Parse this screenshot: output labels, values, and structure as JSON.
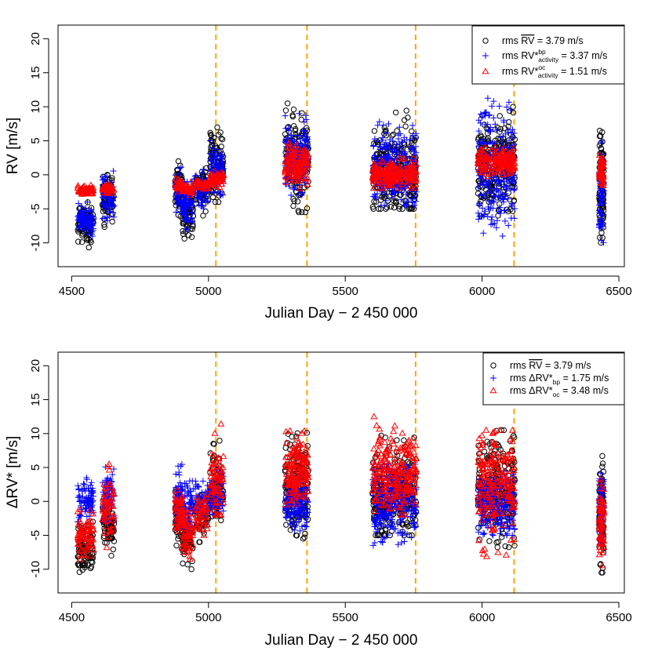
{
  "chart_data": [
    {
      "type": "scatter",
      "panel": "top",
      "xlabel": "Julian Day − 2 450 000",
      "ylabel": "RV [m/s]",
      "xlim": [
        4450,
        6520
      ],
      "ylim": [
        -13.5,
        22
      ],
      "xticks": [
        4500,
        5000,
        5500,
        6000,
        6500
      ],
      "yticks": [
        -10,
        -5,
        0,
        5,
        10,
        15,
        20
      ],
      "grid": false,
      "legend_position": "top-right",
      "vertical_lines": {
        "x": [
          5027,
          5360,
          5757,
          6117
        ],
        "color": "#FFA500",
        "style": "dashed"
      },
      "legend": [
        {
          "marker": "circle",
          "color": "#000000",
          "prefix": "rms ",
          "symbol": "RV",
          "overline": true,
          "sup": "",
          "sub": "",
          "text": " = 3.79 m/s"
        },
        {
          "marker": "plus",
          "color": "#0000FF",
          "prefix": "rms ",
          "symbol": "RV*",
          "overline": false,
          "sup": "bp",
          "sub": "activity",
          "text": " = 3.37 m/s"
        },
        {
          "marker": "triangle",
          "color": "#FF0000",
          "prefix": "rms ",
          "symbol": "RV*",
          "overline": false,
          "sup": "oc",
          "sub": "activity",
          "text": " = 1.51 m/s"
        }
      ],
      "series": [
        {
          "name": "rms RV (mean)",
          "marker": "circle",
          "color": "#000000",
          "clusters": [
            {
              "x": [
                4522,
                4580
              ],
              "y": [
                -11.0,
                -4.0
              ],
              "mean": -7.0,
              "n": 90
            },
            {
              "x": [
                4612,
                4655
              ],
              "y": [
                -8.0,
                0.0
              ],
              "mean": -3.5,
              "n": 70
            },
            {
              "x": [
                4878,
                4905
              ],
              "y": [
                -7.0,
                2.0
              ],
              "mean": -2.0,
              "n": 60
            },
            {
              "x": [
                4905,
                4945
              ],
              "y": [
                -10.0,
                -2.0
              ],
              "mean": -5.5,
              "n": 70
            },
            {
              "x": [
                4950,
                5000
              ],
              "y": [
                -6.0,
                1.0
              ],
              "mean": -2.0,
              "n": 60
            },
            {
              "x": [
                5005,
                5055
              ],
              "y": [
                -4.0,
                8.0
              ],
              "mean": 2.0,
              "n": 80
            },
            {
              "x": [
                5280,
                5365
              ],
              "y": [
                -5.5,
                10.5
              ],
              "mean": 2.0,
              "n": 170
            },
            {
              "x": [
                5600,
                5760
              ],
              "y": [
                -5.0,
                10.5
              ],
              "mean": 0.5,
              "n": 280
            },
            {
              "x": [
                5985,
                6120
              ],
              "y": [
                -6.0,
                10.5
              ],
              "mean": 1.0,
              "n": 240
            },
            {
              "x": [
                6428,
                6445
              ],
              "y": [
                -10.5,
                7.5
              ],
              "mean": -2.0,
              "n": 90
            }
          ]
        },
        {
          "name": "rms RV*bp activity",
          "marker": "plus",
          "color": "#0000FF",
          "clusters": [
            {
              "x": [
                4522,
                4580
              ],
              "y": [
                -9.0,
                -4.0
              ],
              "mean": -6.5,
              "n": 90
            },
            {
              "x": [
                4612,
                4655
              ],
              "y": [
                -7.0,
                1.5
              ],
              "mean": -3.5,
              "n": 70
            },
            {
              "x": [
                4878,
                4905
              ],
              "y": [
                -6.0,
                1.5
              ],
              "mean": -2.5,
              "n": 60
            },
            {
              "x": [
                4905,
                4945
              ],
              "y": [
                -8.0,
                -1.0
              ],
              "mean": -4.5,
              "n": 70
            },
            {
              "x": [
                4950,
                5000
              ],
              "y": [
                -5.0,
                1.0
              ],
              "mean": -2.0,
              "n": 60
            },
            {
              "x": [
                5005,
                5055
              ],
              "y": [
                -3.0,
                5.0
              ],
              "mean": 1.0,
              "n": 80
            },
            {
              "x": [
                5280,
                5365
              ],
              "y": [
                -3.0,
                9.0
              ],
              "mean": 2.5,
              "n": 170
            },
            {
              "x": [
                5600,
                5760
              ],
              "y": [
                -4.5,
                8.0
              ],
              "mean": 0.5,
              "n": 280
            },
            {
              "x": [
                5985,
                6120
              ],
              "y": [
                -9.0,
                11.5
              ],
              "mean": 0.5,
              "n": 240
            },
            {
              "x": [
                6428,
                6445
              ],
              "y": [
                -10.0,
                5.0
              ],
              "mean": -2.0,
              "n": 90
            }
          ]
        },
        {
          "name": "rms RV*oc activity",
          "marker": "triangle",
          "color": "#FF0000",
          "clusters": [
            {
              "x": [
                4522,
                4580
              ],
              "y": [
                -3.0,
                -1.5
              ],
              "mean": -2.3,
              "n": 60
            },
            {
              "x": [
                4612,
                4655
              ],
              "y": [
                -3.0,
                -1.0
              ],
              "mean": -2.0,
              "n": 50
            },
            {
              "x": [
                4878,
                4905
              ],
              "y": [
                -2.5,
                -0.5
              ],
              "mean": -1.5,
              "n": 40
            },
            {
              "x": [
                4905,
                4945
              ],
              "y": [
                -3.0,
                -1.0
              ],
              "mean": -2.0,
              "n": 40
            },
            {
              "x": [
                4950,
                5000
              ],
              "y": [
                -2.5,
                -0.5
              ],
              "mean": -1.5,
              "n": 40
            },
            {
              "x": [
                5005,
                5055
              ],
              "y": [
                -2.0,
                0.5
              ],
              "mean": -0.5,
              "n": 50
            },
            {
              "x": [
                5280,
                5365
              ],
              "y": [
                -2.0,
                5.0
              ],
              "mean": 1.5,
              "n": 120
            },
            {
              "x": [
                5600,
                5760
              ],
              "y": [
                -2.0,
                2.5
              ],
              "mean": 0.0,
              "n": 200
            },
            {
              "x": [
                5985,
                6120
              ],
              "y": [
                -0.5,
                4.5
              ],
              "mean": 2.0,
              "n": 160
            },
            {
              "x": [
                6428,
                6445
              ],
              "y": [
                -2.0,
                3.0
              ],
              "mean": 0.5,
              "n": 50
            }
          ]
        }
      ]
    },
    {
      "type": "scatter",
      "panel": "bottom",
      "xlabel": "Julian Day − 2 450 000",
      "ylabel": "ΔRV* [m/s]",
      "xlim": [
        4450,
        6520
      ],
      "ylim": [
        -13.5,
        22
      ],
      "xticks": [
        4500,
        5000,
        5500,
        6000,
        6500
      ],
      "yticks": [
        -10,
        -5,
        0,
        5,
        10,
        15,
        20
      ],
      "grid": false,
      "legend_position": "top-right",
      "vertical_lines": {
        "x": [
          5027,
          5360,
          5757,
          6117
        ],
        "color": "#FFA500",
        "style": "dashed"
      },
      "legend": [
        {
          "marker": "circle",
          "color": "#000000",
          "prefix": "rms ",
          "symbol": "RV",
          "overline": true,
          "sup": "",
          "sub": "",
          "text": " = 3.79 m/s"
        },
        {
          "marker": "plus",
          "color": "#0000FF",
          "prefix": "rms Δ",
          "symbol": "RV*",
          "overline": false,
          "sup": "",
          "sub": "bp",
          "text": " = 1.75 m/s"
        },
        {
          "marker": "triangle",
          "color": "#FF0000",
          "prefix": "rms Δ",
          "symbol": "RV*",
          "overline": false,
          "sup": "",
          "sub": "oc",
          "text": " = 3.48 m/s"
        }
      ],
      "series": [
        {
          "name": "rms RV (mean)",
          "marker": "circle",
          "color": "#000000",
          "clusters": [
            {
              "x": [
                4522,
                4580
              ],
              "y": [
                -11.0,
                -3.0
              ],
              "mean": -7.0,
              "n": 90
            },
            {
              "x": [
                4612,
                4655
              ],
              "y": [
                -8.0,
                0.0
              ],
              "mean": -3.5,
              "n": 70
            },
            {
              "x": [
                4878,
                4905
              ],
              "y": [
                -7.0,
                2.0
              ],
              "mean": -2.0,
              "n": 60
            },
            {
              "x": [
                4905,
                4945
              ],
              "y": [
                -10.0,
                -2.0
              ],
              "mean": -5.5,
              "n": 70
            },
            {
              "x": [
                4950,
                5000
              ],
              "y": [
                -6.0,
                1.0
              ],
              "mean": -2.0,
              "n": 60
            },
            {
              "x": [
                5005,
                5055
              ],
              "y": [
                -4.0,
                9.5
              ],
              "mean": 2.0,
              "n": 80
            },
            {
              "x": [
                5280,
                5365
              ],
              "y": [
                -5.5,
                10.5
              ],
              "mean": 2.5,
              "n": 170
            },
            {
              "x": [
                5600,
                5760
              ],
              "y": [
                -5.0,
                10.5
              ],
              "mean": 1.0,
              "n": 280
            },
            {
              "x": [
                5985,
                6120
              ],
              "y": [
                -7.0,
                10.5
              ],
              "mean": 1.5,
              "n": 240
            },
            {
              "x": [
                6428,
                6445
              ],
              "y": [
                -10.5,
                7.5
              ],
              "mean": -2.0,
              "n": 90
            }
          ]
        },
        {
          "name": "rms ΔRV*bp",
          "marker": "plus",
          "color": "#0000FF",
          "clusters": [
            {
              "x": [
                4522,
                4580
              ],
              "y": [
                -3.0,
                3.5
              ],
              "mean": 0.0,
              "n": 90
            },
            {
              "x": [
                4612,
                4655
              ],
              "y": [
                -3.0,
                5.5
              ],
              "mean": 1.0,
              "n": 70
            },
            {
              "x": [
                4878,
                4905
              ],
              "y": [
                -3.0,
                6.0
              ],
              "mean": 0.5,
              "n": 60
            },
            {
              "x": [
                4905,
                4945
              ],
              "y": [
                -5.0,
                3.0
              ],
              "mean": -1.0,
              "n": 70
            },
            {
              "x": [
                4950,
                5000
              ],
              "y": [
                -3.5,
                3.0
              ],
              "mean": 0.0,
              "n": 60
            },
            {
              "x": [
                5005,
                5055
              ],
              "y": [
                -2.0,
                5.0
              ],
              "mean": 1.0,
              "n": 80
            },
            {
              "x": [
                5280,
                5365
              ],
              "y": [
                -4.5,
                4.0
              ],
              "mean": 0.0,
              "n": 170
            },
            {
              "x": [
                5600,
                5760
              ],
              "y": [
                -8.5,
                5.5
              ],
              "mean": 0.0,
              "n": 280
            },
            {
              "x": [
                5985,
                6120
              ],
              "y": [
                -5.0,
                5.0
              ],
              "mean": -0.5,
              "n": 240
            },
            {
              "x": [
                6428,
                6445
              ],
              "y": [
                -8.0,
                5.0
              ],
              "mean": -1.0,
              "n": 90
            }
          ]
        },
        {
          "name": "rms ΔRV*oc",
          "marker": "triangle",
          "color": "#FF0000",
          "clusters": [
            {
              "x": [
                4522,
                4580
              ],
              "y": [
                -9.0,
                -1.0
              ],
              "mean": -5.0,
              "n": 70
            },
            {
              "x": [
                4612,
                4655
              ],
              "y": [
                -7.0,
                5.5
              ],
              "mean": -1.5,
              "n": 60
            },
            {
              "x": [
                4878,
                4905
              ],
              "y": [
                -5.0,
                4.0
              ],
              "mean": -1.0,
              "n": 50
            },
            {
              "x": [
                4905,
                4945
              ],
              "y": [
                -8.5,
                -1.0
              ],
              "mean": -4.5,
              "n": 60
            },
            {
              "x": [
                4950,
                5000
              ],
              "y": [
                -5.0,
                1.0
              ],
              "mean": -2.0,
              "n": 50
            },
            {
              "x": [
                5005,
                5055
              ],
              "y": [
                -2.0,
                12.0
              ],
              "mean": 3.0,
              "n": 70
            },
            {
              "x": [
                5280,
                5365
              ],
              "y": [
                -1.0,
                10.5
              ],
              "mean": 4.5,
              "n": 150
            },
            {
              "x": [
                5600,
                5760
              ],
              "y": [
                -2.0,
                12.5
              ],
              "mean": 4.0,
              "n": 230
            },
            {
              "x": [
                5985,
                6120
              ],
              "y": [
                -8.5,
                10.5
              ],
              "mean": 2.5,
              "n": 200
            },
            {
              "x": [
                6428,
                6445
              ],
              "y": [
                -10.0,
                4.0
              ],
              "mean": -3.0,
              "n": 70
            }
          ]
        }
      ]
    }
  ]
}
